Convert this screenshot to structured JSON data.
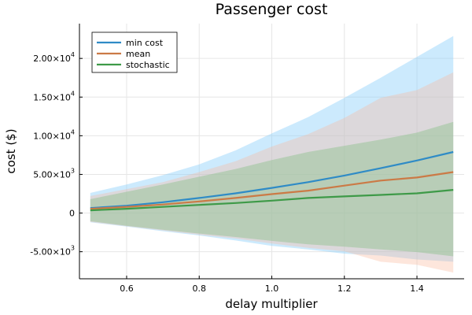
{
  "chart_data": {
    "type": "line",
    "title": "Passenger cost",
    "xlabel": "delay multiplier",
    "ylabel": "cost ($)",
    "xlim": [
      0.47,
      1.53
    ],
    "ylim": [
      -8500,
      24500
    ],
    "x_ticks": [
      0.6,
      0.8,
      1.0,
      1.2,
      1.4
    ],
    "x_tick_labels": [
      "0.6",
      "0.8",
      "1.0",
      "1.2",
      "1.4"
    ],
    "y_ticks": [
      {
        "value": -5000,
        "mantissa": "-5.00",
        "exp": "3"
      },
      {
        "value": 0,
        "mantissa": "0",
        "exp": ""
      },
      {
        "value": 5000,
        "mantissa": "5.00",
        "exp": "3"
      },
      {
        "value": 10000,
        "mantissa": "1.00",
        "exp": "4"
      },
      {
        "value": 15000,
        "mantissa": "1.50",
        "exp": "4"
      },
      {
        "value": 20000,
        "mantissa": "2.00",
        "exp": "4"
      }
    ],
    "y_tick_times": "×10",
    "grid": true,
    "legend_position": "top-left",
    "x": [
      0.5,
      0.6,
      0.7,
      0.8,
      0.9,
      1.0,
      1.1,
      1.2,
      1.3,
      1.4,
      1.5
    ],
    "series": [
      {
        "name": "min cost",
        "color": "#2f8bc6",
        "band_color": "#8fd1fb",
        "band_opacity": 0.45,
        "values": [
          650,
          950,
          1400,
          1950,
          2550,
          3250,
          4000,
          4850,
          5800,
          6800,
          7900
        ],
        "upper": [
          2600,
          3700,
          4900,
          6300,
          8100,
          10300,
          12400,
          14900,
          17500,
          20200,
          22900
        ],
        "lower": [
          -1200,
          -1750,
          -2350,
          -2900,
          -3550,
          -4250,
          -4700,
          -5250,
          -5500,
          -6000,
          -6300
        ]
      },
      {
        "name": "mean",
        "color": "#cb7a46",
        "band_color": "#f9b79b",
        "band_opacity": 0.35,
        "values": [
          550,
          800,
          1100,
          1500,
          1950,
          2450,
          2900,
          3550,
          4200,
          4600,
          5300
        ],
        "upper": [
          2200,
          3100,
          4000,
          5300,
          6700,
          8600,
          10200,
          12300,
          14900,
          15900,
          18200
        ],
        "lower": [
          -1150,
          -1700,
          -2250,
          -2800,
          -3300,
          -3950,
          -4500,
          -4950,
          -6300,
          -6700,
          -7700
        ]
      },
      {
        "name": "stochastic",
        "color": "#3e9a48",
        "band_color": "#8bc08c",
        "band_opacity": 0.45,
        "values": [
          350,
          550,
          800,
          1050,
          1300,
          1600,
          1950,
          2150,
          2350,
          2550,
          3000
        ],
        "upper": [
          1800,
          2750,
          3700,
          4700,
          5700,
          6850,
          7900,
          8700,
          9500,
          10400,
          11800
        ],
        "lower": [
          -1050,
          -1650,
          -2150,
          -2650,
          -3100,
          -3600,
          -4050,
          -4350,
          -4700,
          -5050,
          -5600
        ]
      }
    ]
  }
}
